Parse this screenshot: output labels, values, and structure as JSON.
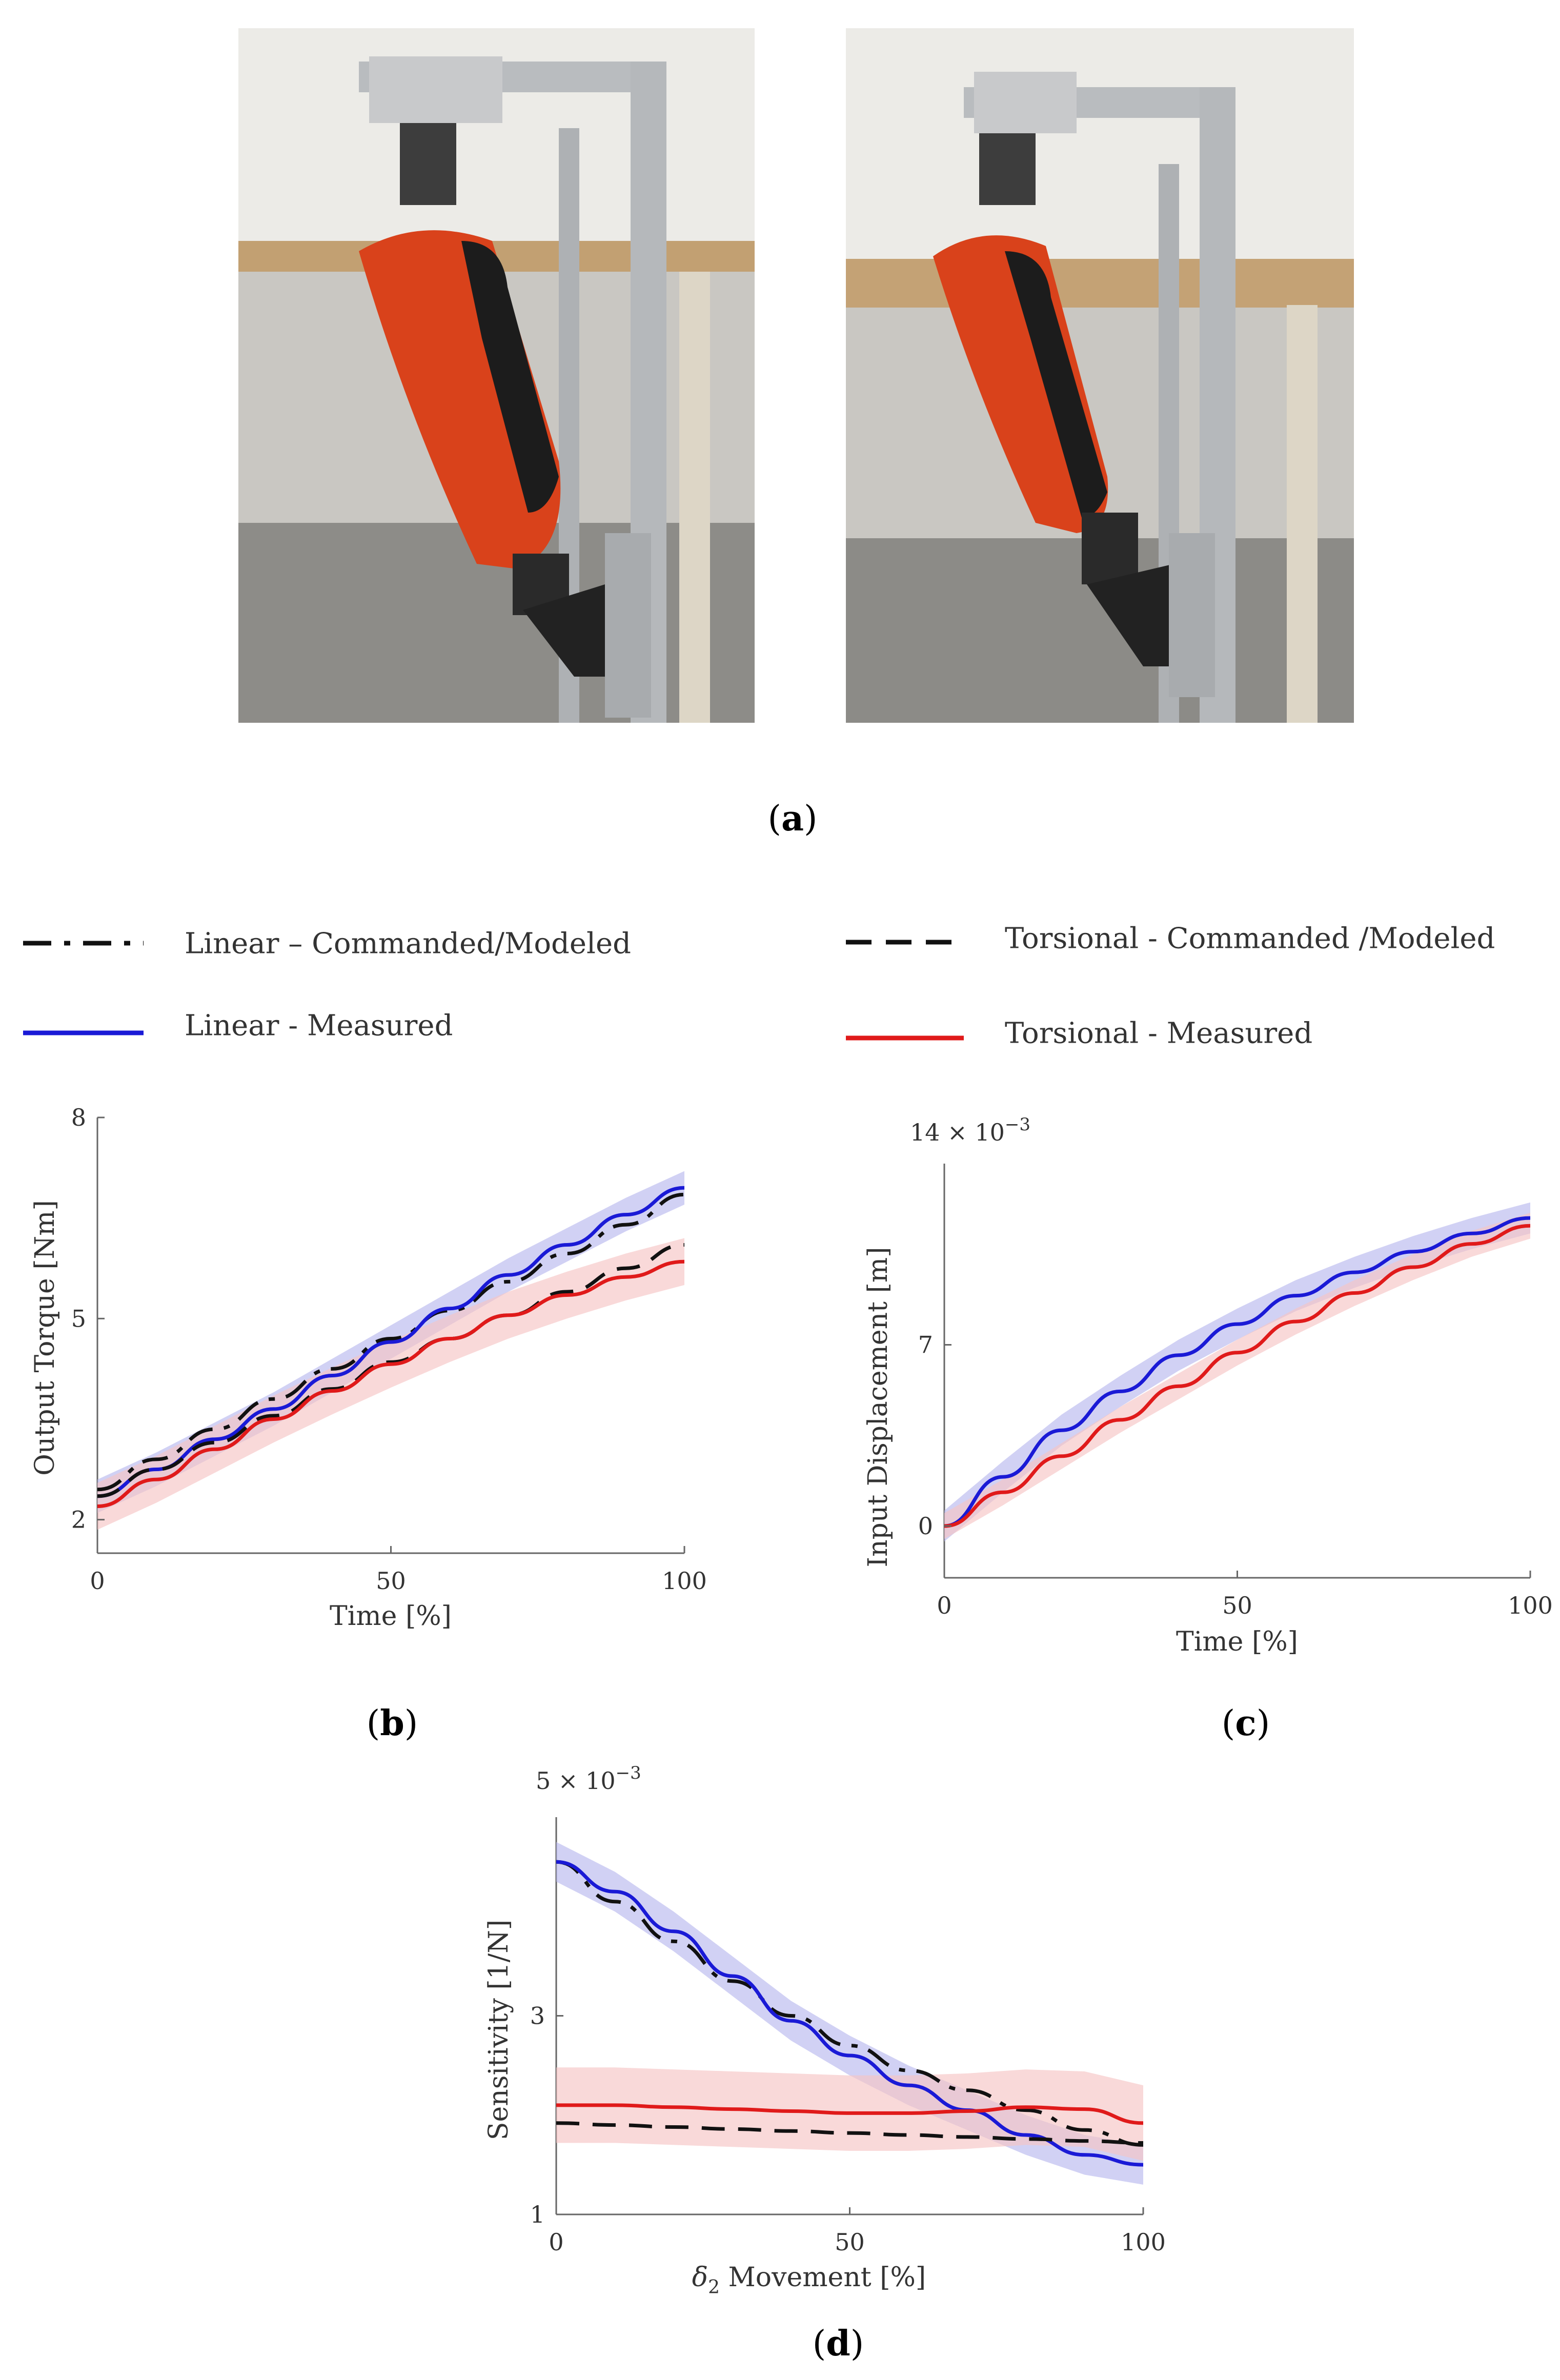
{
  "panel_labels": {
    "a": "a",
    "b": "b",
    "c": "c",
    "d": "d"
  },
  "photos": {
    "left": {
      "description_icon": "robotic-ankle-photo-icon"
    },
    "right": {
      "description_icon": "robotic-ankle-photo-icon"
    }
  },
  "legend": {
    "linear_commanded": "Linear – Commanded/Modeled",
    "linear_measured": "Linear - Measured",
    "torsional_commanded": "Torsional - Commanded /Modeled",
    "torsional_measured": "Torsional - Measured"
  },
  "colors": {
    "linear": "#1a1ad6",
    "torsional": "#e01a1a",
    "modeled": "#111111",
    "linear_band": "#b8b8ee",
    "torsional_band": "#f6c4c4"
  },
  "chart_data": [
    {
      "id": "b",
      "type": "line",
      "xlabel": "Time [%]",
      "ylabel": "Output Torque [Nm]",
      "xlim": [
        0,
        100
      ],
      "ylim": [
        1.5,
        8
      ],
      "xticks": [
        "0",
        "50",
        "100"
      ],
      "yticks": [
        "2",
        "5",
        "8"
      ],
      "x": [
        0,
        10,
        20,
        30,
        40,
        50,
        60,
        70,
        80,
        90,
        100
      ],
      "series": [
        {
          "name": "Linear – Commanded/Modeled",
          "style": "dashdot",
          "values": [
            2.45,
            2.9,
            3.35,
            3.8,
            4.25,
            4.7,
            5.12,
            5.55,
            5.97,
            6.4,
            6.85
          ]
        },
        {
          "name": "Linear - Measured",
          "style": "solid",
          "values": [
            2.35,
            2.75,
            3.2,
            3.65,
            4.15,
            4.65,
            5.15,
            5.65,
            6.1,
            6.55,
            6.95
          ],
          "band": 0.25
        },
        {
          "name": "Torsional - Commanded /Modeled",
          "style": "dashed",
          "values": [
            2.35,
            2.75,
            3.15,
            3.55,
            3.95,
            4.35,
            4.7,
            5.05,
            5.4,
            5.75,
            6.1
          ]
        },
        {
          "name": "Torsional - Measured",
          "style": "solid",
          "values": [
            2.2,
            2.6,
            3.05,
            3.5,
            3.92,
            4.32,
            4.7,
            5.05,
            5.35,
            5.62,
            5.85
          ],
          "band": 0.35
        }
      ]
    },
    {
      "id": "c",
      "type": "line",
      "xlabel": "Time [%]",
      "ylabel": "Input Displacement [m]",
      "scale_label": "14 × 10",
      "scale_exp": "−3",
      "xlim": [
        0,
        100
      ],
      "ylim": [
        -2,
        14
      ],
      "xticks": [
        "0",
        "50",
        "100"
      ],
      "yticks": [
        "0",
        "7"
      ],
      "x": [
        0,
        10,
        20,
        30,
        40,
        50,
        60,
        70,
        80,
        90,
        100
      ],
      "series": [
        {
          "name": "Linear - Measured",
          "style": "solid",
          "values": [
            0,
            1.9,
            3.7,
            5.2,
            6.6,
            7.8,
            8.9,
            9.8,
            10.6,
            11.3,
            11.9
          ],
          "band": 0.6
        },
        {
          "name": "Torsional - Measured",
          "style": "solid",
          "values": [
            0,
            1.3,
            2.7,
            4.1,
            5.4,
            6.7,
            7.9,
            9.0,
            10.0,
            10.9,
            11.6
          ],
          "band": 0.5
        }
      ]
    },
    {
      "id": "d",
      "type": "line",
      "xlabel": "δ2 Movement [%]",
      "xlabel_sym": "δ",
      "xlabel_sub": "2",
      "xlabel_rest": " Movement [%]",
      "ylabel": "Sensitivity [1/N]",
      "scale_label": "5 × 10",
      "scale_exp": "−3",
      "xlim": [
        0,
        100
      ],
      "ylim": [
        1,
        5
      ],
      "xticks": [
        "0",
        "50",
        "100"
      ],
      "yticks": [
        "1",
        "3"
      ],
      "x": [
        0,
        10,
        20,
        30,
        40,
        50,
        60,
        70,
        80,
        90,
        100
      ],
      "series": [
        {
          "name": "Linear – Commanded/Modeled",
          "style": "dashdot",
          "values": [
            4.55,
            4.15,
            3.75,
            3.35,
            3.0,
            2.7,
            2.45,
            2.25,
            2.05,
            1.85,
            1.7
          ]
        },
        {
          "name": "Linear - Measured",
          "style": "solid",
          "values": [
            4.55,
            4.25,
            3.85,
            3.4,
            2.95,
            2.6,
            2.3,
            2.05,
            1.8,
            1.6,
            1.5
          ],
          "band": 0.2
        },
        {
          "name": "Torsional - Commanded /Modeled",
          "style": "dashed",
          "values": [
            1.92,
            1.9,
            1.88,
            1.86,
            1.84,
            1.82,
            1.8,
            1.78,
            1.76,
            1.74,
            1.72
          ]
        },
        {
          "name": "Torsional - Measured",
          "style": "solid",
          "values": [
            2.1,
            2.1,
            2.08,
            2.06,
            2.04,
            2.02,
            2.02,
            2.04,
            2.08,
            2.06,
            1.92
          ],
          "band": 0.38
        }
      ]
    }
  ]
}
